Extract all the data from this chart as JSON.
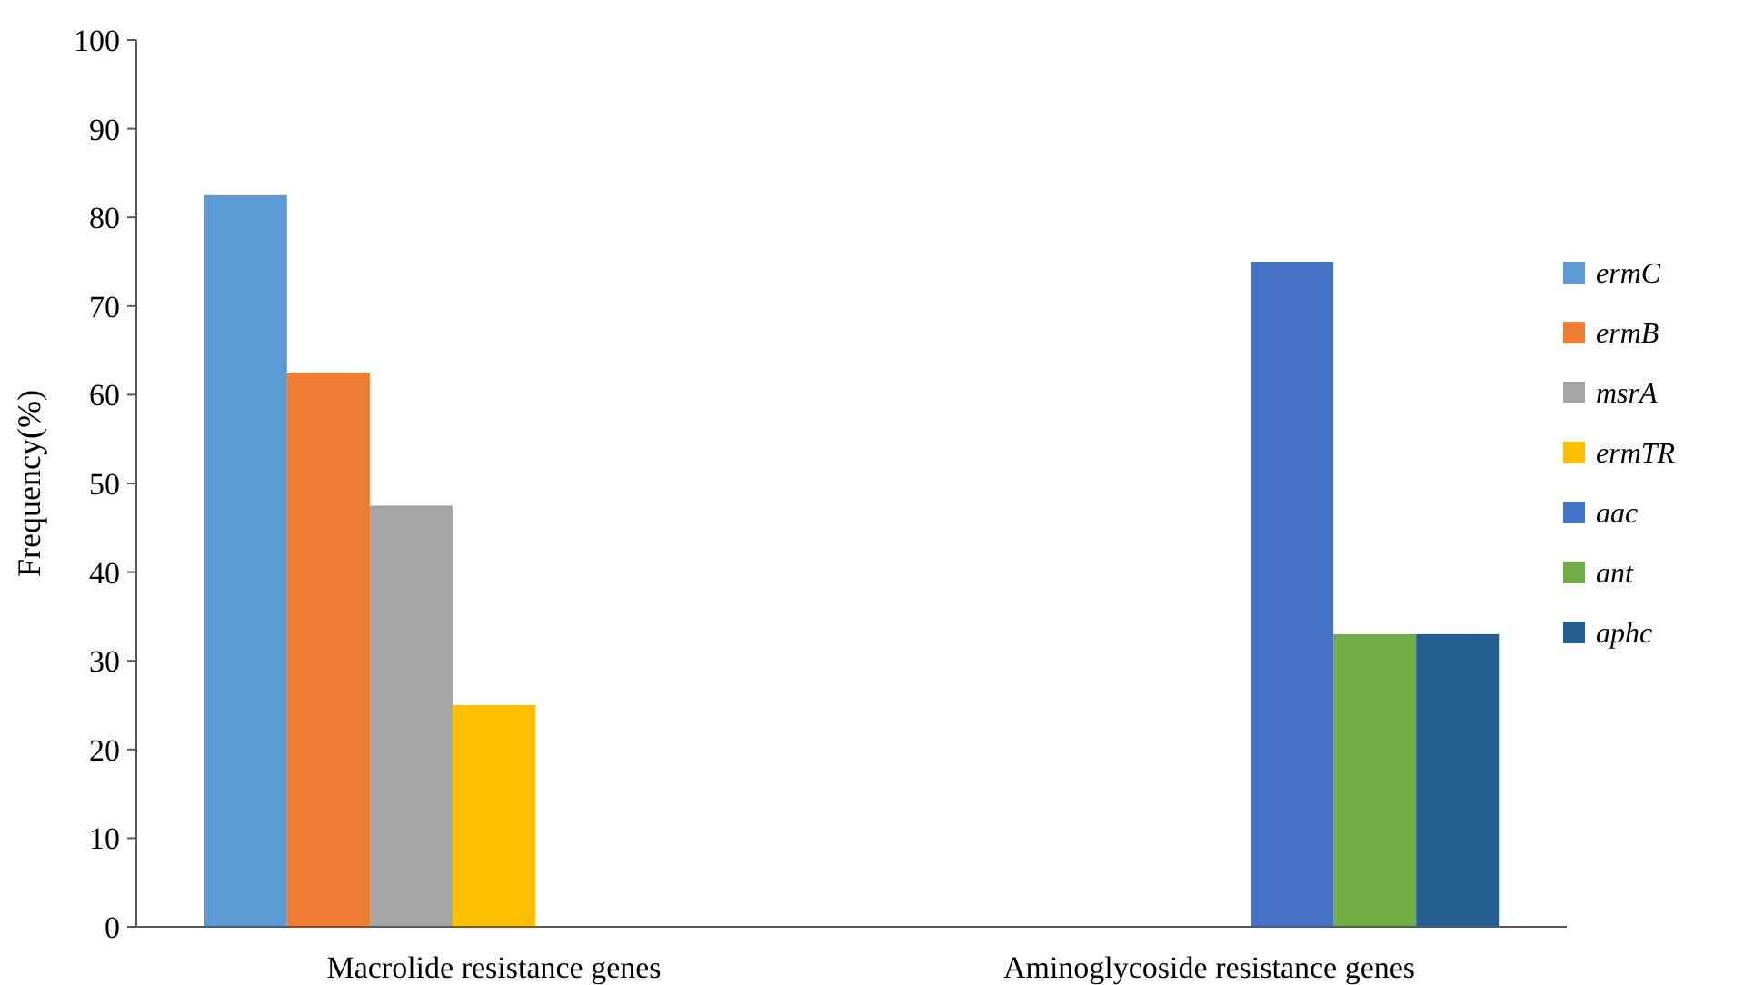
{
  "chart_data": {
    "type": "bar",
    "ylabel": "Frequency(%)",
    "categories": [
      "Macrolide resistance genes",
      "Aminoglycoside resistance genes"
    ],
    "series": [
      {
        "name": "ermC",
        "color": "#5b9bd5",
        "values": [
          82.5,
          null
        ]
      },
      {
        "name": "ermB",
        "color": "#ed7d31",
        "values": [
          62.5,
          null
        ]
      },
      {
        "name": "msrA",
        "color": "#a5a5a5",
        "values": [
          47.5,
          null
        ]
      },
      {
        "name": "ermTR",
        "color": "#ffc000",
        "values": [
          25,
          null
        ]
      },
      {
        "name": "aac",
        "color": "#4472c4",
        "values": [
          null,
          75
        ]
      },
      {
        "name": "ant",
        "color": "#70ad47",
        "values": [
          null,
          33
        ]
      },
      {
        "name": "aphc",
        "color": "#255e91",
        "values": [
          null,
          33
        ]
      }
    ],
    "ylim": [
      0,
      100
    ],
    "yticks": [
      0,
      10,
      20,
      30,
      40,
      50,
      60,
      70,
      80,
      90,
      100
    ],
    "grid": false,
    "legend": "right"
  }
}
